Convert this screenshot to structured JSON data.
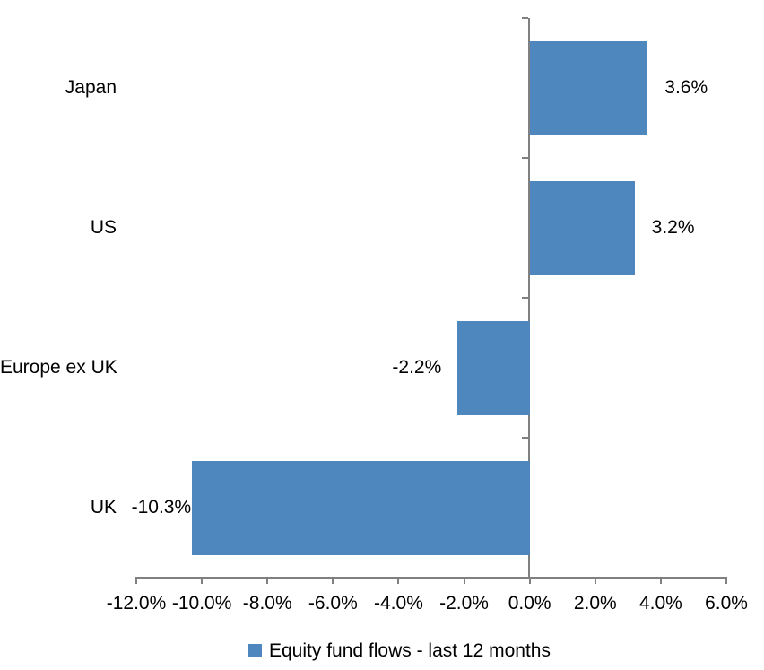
{
  "chart_data": {
    "type": "bar",
    "orientation": "horizontal",
    "title": "",
    "xlabel": "",
    "ylabel": "",
    "categories": [
      "Japan",
      "US",
      "Europe ex UK",
      "UK"
    ],
    "series": [
      {
        "name": "Equity fund flows - last 12 months",
        "values": [
          3.6,
          3.2,
          -2.2,
          -10.3
        ]
      }
    ],
    "values": [
      3.6,
      3.2,
      -2.2,
      -10.3
    ],
    "data_labels": [
      "3.6%",
      "3.2%",
      "-2.2%",
      "-10.3%"
    ],
    "xlim": [
      -12,
      6
    ],
    "x_ticks": [
      -12,
      -10,
      -8,
      -6,
      -4,
      -2,
      0,
      2,
      4,
      6
    ],
    "x_tick_labels": [
      "-12.0%",
      "-10.0%",
      "-8.0%",
      "-6.0%",
      "-4.0%",
      "-2.0%",
      "0.0%",
      "2.0%",
      "4.0%",
      "6.0%"
    ],
    "grid": false,
    "legend_position": "bottom",
    "colors": {
      "bar": "#4E87BD",
      "axis": "#808080",
      "text": "#000000",
      "background": "#FFFFFF"
    }
  },
  "legend": {
    "label": "Equity fund flows - last 12 months"
  }
}
